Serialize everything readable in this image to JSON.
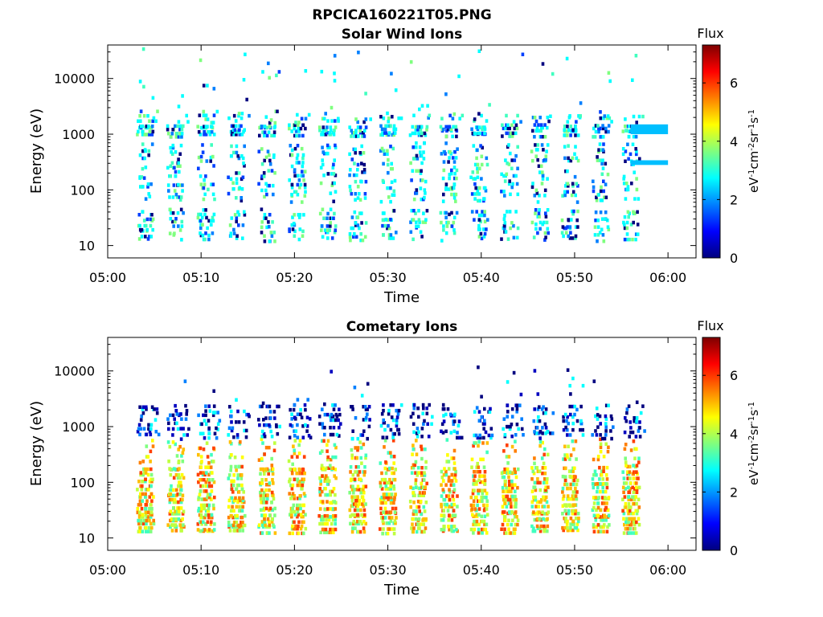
{
  "figure": {
    "file_title": "RPCICA160221T05.PNG",
    "colorbar_colors": [
      "#00007f",
      "#0000ff",
      "#007fff",
      "#00ffff",
      "#7fff7f",
      "#ffff00",
      "#ff7f00",
      "#ff0000",
      "#7f0000"
    ],
    "pixel_colors": {
      "solar_wind": [
        "#00ffff",
        "#00ffff",
        "#00ffff",
        "#40ffbf",
        "#007fff",
        "#0040ff",
        "#00007f",
        "#7fff7f"
      ],
      "comet_low": [
        "#7fff7f",
        "#bfff40",
        "#ffff00",
        "#ffbf00",
        "#ff7f00",
        "#ff4000",
        "#40ffbf"
      ],
      "comet_high": [
        "#00007f",
        "#00007f",
        "#0000bf",
        "#00ffff",
        "#007fff"
      ]
    }
  },
  "chart_data": [
    {
      "type": "heatmap",
      "title": "Solar Wind Ions",
      "xlabel": "Time",
      "ylabel": "Energy (eV)",
      "x_tick_labels": [
        "05:00",
        "05:10",
        "05:20",
        "05:30",
        "05:40",
        "05:50",
        "06:00"
      ],
      "x_ticks_min": [
        0,
        10,
        20,
        30,
        40,
        50,
        60
      ],
      "xlim_min": [
        0,
        63
      ],
      "yscale": "log",
      "ylim": [
        6,
        40000
      ],
      "y_ticks": [
        10,
        100,
        1000,
        10000
      ],
      "y_tick_labels": [
        "10",
        "100",
        "1000",
        "10000"
      ],
      "colorbar": {
        "label": "Flux",
        "unit_base": [
          "eV",
          "cm",
          "sr",
          "s"
        ],
        "unit_exp": [
          "-1",
          "-2",
          "-1",
          "-1"
        ],
        "range": [
          0,
          7.3
        ],
        "ticks": [
          0,
          2,
          4,
          6
        ],
        "tick_labels": [
          "0",
          "2",
          "4",
          "6"
        ]
      },
      "sweep_start_min": 3.5,
      "sweep_period_min": 3.25,
      "sweep_end_min": 56.0,
      "bands": [
        {
          "e_min": 12,
          "e_max": 45,
          "value": 1.8,
          "density": 0.45
        },
        {
          "e_min": 60,
          "e_max": 700,
          "value": 2.4,
          "density": 0.3
        },
        {
          "e_min": 900,
          "e_max": 1500,
          "value": 2.8,
          "density": 0.85
        },
        {
          "e_min": 1600,
          "e_max": 2600,
          "value": 2.6,
          "density": 0.2
        },
        {
          "e_min": 2600,
          "e_max": 35000,
          "value": 1.2,
          "density": 0.02
        }
      ],
      "steady_lines": [
        {
          "t_start": 56.0,
          "t_end": 60.0,
          "e_min": 1000,
          "e_max": 1500,
          "value": 2.5
        },
        {
          "t_start": 56.0,
          "t_end": 60.0,
          "e_min": 280,
          "e_max": 340,
          "value": 2.5
        }
      ]
    },
    {
      "type": "heatmap",
      "title": "Cometary Ions",
      "xlabel": "Time",
      "ylabel": "Energy (eV)",
      "x_tick_labels": [
        "05:00",
        "05:10",
        "05:20",
        "05:30",
        "05:40",
        "05:50",
        "06:00"
      ],
      "x_ticks_min": [
        0,
        10,
        20,
        30,
        40,
        50,
        60
      ],
      "xlim_min": [
        0,
        63
      ],
      "yscale": "log",
      "ylim": [
        6,
        40000
      ],
      "y_ticks": [
        10,
        100,
        1000,
        10000
      ],
      "y_tick_labels": [
        "10",
        "100",
        "1000",
        "10000"
      ],
      "colorbar": {
        "label": "Flux",
        "unit_base": [
          "eV",
          "cm",
          "sr",
          "s"
        ],
        "unit_exp": [
          "-1",
          "-2",
          "-1",
          "-1"
        ],
        "range": [
          0,
          7.3
        ],
        "ticks": [
          0,
          2,
          4,
          6
        ],
        "tick_labels": [
          "0",
          "2",
          "4",
          "6"
        ]
      },
      "sweep_start_min": 3.5,
      "sweep_period_min": 3.25,
      "sweep_end_min": 57.0,
      "bands": [
        {
          "e_min": 12,
          "e_max": 60,
          "value": 5.2,
          "density": 0.9
        },
        {
          "e_min": 60,
          "e_max": 200,
          "value": 3.6,
          "density": 0.75
        },
        {
          "e_min": 200,
          "e_max": 600,
          "value": 2.6,
          "density": 0.25
        },
        {
          "e_min": 600,
          "e_max": 2500,
          "value": 0.6,
          "density": 0.35
        },
        {
          "e_min": 2500,
          "e_max": 12000,
          "value": 0.5,
          "density": 0.02
        }
      ],
      "steady_lines": []
    }
  ]
}
